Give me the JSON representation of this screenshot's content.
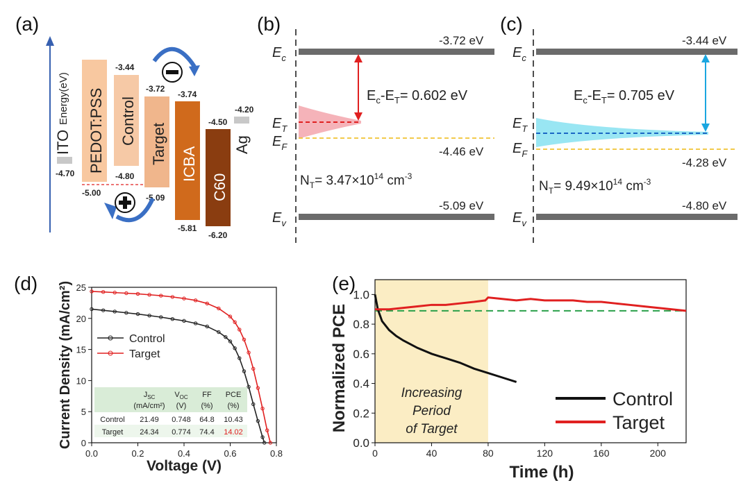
{
  "panel_labels": {
    "a": "(a)",
    "b": "(b)",
    "c": "(c)",
    "d": "(d)",
    "e": "(e)"
  },
  "panel_a": {
    "axis_label": "Energy(eV)",
    "materials": [
      {
        "name": "ITO",
        "color": "#c8c8c8",
        "top": -4.7,
        "bottom": -4.7,
        "top_label": "",
        "bottom_label": "-4.70"
      },
      {
        "name": "PEDOT:PSS",
        "color": "#f8c8a0",
        "top": -3.3,
        "bottom": -5.0,
        "top_label": "",
        "bottom_label": "-5.00"
      },
      {
        "name": "Control",
        "color": "#f6c9a6",
        "top": -3.44,
        "bottom": -4.8,
        "top_label": "-3.44",
        "bottom_label": "-4.80"
      },
      {
        "name": "Target",
        "color": "#f0b68c",
        "top": -3.72,
        "bottom": -5.09,
        "top_label": "-3.72",
        "bottom_label": "-5.09"
      },
      {
        "name": "ICBA",
        "color": "#d06a1c",
        "top": -3.74,
        "bottom": -5.81,
        "top_label": "-3.74",
        "bottom_label": "-5.81"
      },
      {
        "name": "C60",
        "color": "#8a3d10",
        "top": -4.5,
        "bottom": -6.2,
        "top_label": "-4.50",
        "bottom_label": "-6.20"
      },
      {
        "name": "Ag",
        "color": "#c8c8c8",
        "top": -4.2,
        "bottom": -4.2,
        "top_label": "-4.20",
        "bottom_label": ""
      }
    ]
  },
  "panel_b": {
    "ec_label": "E",
    "ec_sub": "c",
    "et_label": "E",
    "et_sub": "T",
    "ef_label": "E",
    "ef_sub": "F",
    "ev_label": "E",
    "ev_sub": "v",
    "ec_value": "-3.72 eV",
    "ef_value": "-4.46 eV",
    "ev_value": "-5.09 eV",
    "gap_prefix": "E",
    "gap_text": "= 0.602 eV",
    "nt_text": "= 3.47×10",
    "nt_exp": "14",
    "nt_unit": "cm",
    "nt_unit_exp": "-3",
    "color": "#e0202a"
  },
  "panel_c": {
    "ec_value": "-3.44 eV",
    "ef_value": "-4.28 eV",
    "ev_value": "-4.80 eV",
    "gap_text": "= 0.705 eV",
    "nt_text": "= 9.49×10",
    "nt_exp": "14",
    "color": "#1aa6e0"
  },
  "chart_data": [
    {
      "type": "line",
      "xlabel": "Voltage (V)",
      "ylabel": "Current Density (mA/cm²)",
      "xlim": [
        0.0,
        0.8
      ],
      "ylim": [
        0,
        25
      ],
      "xticks": [
        "0.0",
        "0.2",
        "0.4",
        "0.6",
        "0.8"
      ],
      "yticks": [
        "0",
        "5",
        "10",
        "15",
        "20",
        "25"
      ],
      "series": [
        {
          "name": "Control",
          "color": "#222222",
          "x": [
            0,
            0.05,
            0.1,
            0.15,
            0.2,
            0.25,
            0.3,
            0.35,
            0.4,
            0.45,
            0.5,
            0.55,
            0.58,
            0.6,
            0.62,
            0.64,
            0.66,
            0.68,
            0.7,
            0.72,
            0.74,
            0.748
          ],
          "y": [
            21.49,
            21.3,
            21.1,
            20.9,
            20.7,
            20.45,
            20.2,
            19.9,
            19.6,
            19.2,
            18.7,
            17.8,
            17.0,
            16.3,
            15.2,
            13.6,
            11.5,
            9.0,
            6.2,
            3.5,
            0.9,
            0
          ]
        },
        {
          "name": "Target",
          "color": "#e02020",
          "x": [
            0,
            0.05,
            0.1,
            0.15,
            0.2,
            0.25,
            0.3,
            0.35,
            0.4,
            0.45,
            0.5,
            0.55,
            0.6,
            0.62,
            0.64,
            0.66,
            0.68,
            0.7,
            0.72,
            0.74,
            0.76,
            0.774
          ],
          "y": [
            24.34,
            24.25,
            24.15,
            24.05,
            23.95,
            23.8,
            23.65,
            23.45,
            23.2,
            22.9,
            22.4,
            21.6,
            20.3,
            19.4,
            18.2,
            16.6,
            14.5,
            11.9,
            8.8,
            5.5,
            2.0,
            0
          ]
        }
      ],
      "table": {
        "headers": [
          [
            "",
            ""
          ],
          [
            "J",
            "SC",
            "(mA/cm²)"
          ],
          [
            "V",
            "OC",
            "(V)"
          ],
          [
            "FF",
            "",
            "(%)"
          ],
          [
            "PCE",
            "",
            "(%)"
          ]
        ],
        "rows": [
          {
            "label": "Control",
            "jsc": "21.49",
            "voc": "0.748",
            "ff": "64.8",
            "pce": "10.43"
          },
          {
            "label": "Target",
            "jsc": "24.34",
            "voc": "0.774",
            "ff": "74.4",
            "pce": "14.02"
          }
        ]
      }
    },
    {
      "type": "line",
      "xlabel": "Time (h)",
      "ylabel": "Normalized PCE",
      "xlim": [
        0,
        220
      ],
      "ylim": [
        0.0,
        1.1
      ],
      "xticks": [
        "0",
        "40",
        "80",
        "120",
        "160",
        "200"
      ],
      "yticks": [
        "0.0",
        "0.2",
        "0.4",
        "0.6",
        "0.8",
        "1.0"
      ],
      "shaded_region": [
        0,
        80
      ],
      "shaded_color": "#fbedc4",
      "shaded_text": [
        "Increasing",
        "Period",
        "of Target"
      ],
      "reference_line": 0.89,
      "series": [
        {
          "name": "Control",
          "color": "#111111",
          "x": [
            0,
            2,
            5,
            10,
            15,
            20,
            30,
            40,
            50,
            60,
            70,
            80,
            90,
            100
          ],
          "y": [
            1.0,
            0.9,
            0.82,
            0.76,
            0.72,
            0.69,
            0.64,
            0.6,
            0.57,
            0.54,
            0.5,
            0.47,
            0.44,
            0.41
          ]
        },
        {
          "name": "Target",
          "color": "#e02020",
          "x": [
            0,
            10,
            20,
            30,
            40,
            50,
            60,
            70,
            78,
            80,
            90,
            100,
            110,
            120,
            130,
            140,
            150,
            160,
            170,
            180,
            190,
            200,
            210,
            220
          ],
          "y": [
            0.9,
            0.9,
            0.91,
            0.92,
            0.93,
            0.93,
            0.94,
            0.95,
            0.96,
            0.98,
            0.97,
            0.96,
            0.97,
            0.96,
            0.96,
            0.96,
            0.95,
            0.95,
            0.94,
            0.93,
            0.92,
            0.91,
            0.9,
            0.89
          ]
        }
      ]
    }
  ]
}
